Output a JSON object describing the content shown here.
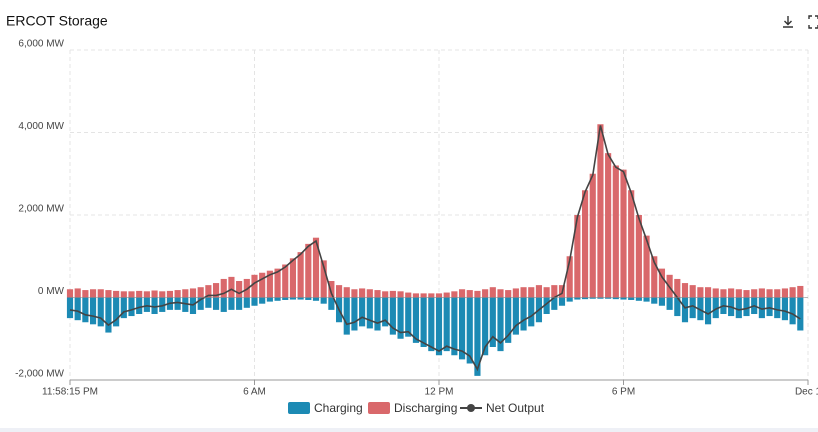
{
  "chart_data": {
    "type": "bar_line",
    "title": "ERCOT Storage",
    "x": [
      0,
      0.25,
      0.5,
      0.75,
      1,
      1.25,
      1.5,
      1.75,
      2,
      2.25,
      2.5,
      2.75,
      3,
      3.25,
      3.5,
      3.75,
      4,
      4.25,
      4.5,
      4.75,
      5,
      5.25,
      5.5,
      5.75,
      6,
      6.25,
      6.5,
      6.75,
      7,
      7.25,
      7.5,
      7.75,
      8,
      8.25,
      8.5,
      8.75,
      9,
      9.25,
      9.5,
      9.75,
      10,
      10.25,
      10.5,
      10.75,
      11,
      11.25,
      11.5,
      11.75,
      12,
      12.25,
      12.5,
      12.75,
      13,
      13.25,
      13.5,
      13.75,
      14,
      14.25,
      14.5,
      14.75,
      15,
      15.25,
      15.5,
      15.75,
      16,
      16.25,
      16.5,
      16.75,
      17,
      17.25,
      17.5,
      17.75,
      18,
      18.25,
      18.5,
      18.75,
      19,
      19.25,
      19.5,
      19.75,
      20,
      20.25,
      20.5,
      20.75,
      21,
      21.25,
      21.5,
      21.75,
      22,
      22.25,
      22.5,
      22.75,
      23,
      23.25,
      23.5,
      23.75
    ],
    "series": [
      {
        "name": "Charging",
        "color": "#1c8ab4",
        "values": [
          -500,
          -550,
          -600,
          -650,
          -700,
          -850,
          -700,
          -500,
          -450,
          -400,
          -350,
          -400,
          -350,
          -300,
          -300,
          -350,
          -400,
          -300,
          -250,
          -300,
          -350,
          -300,
          -300,
          -250,
          -200,
          -150,
          -100,
          -80,
          -60,
          -50,
          -50,
          -60,
          -80,
          -150,
          -300,
          -600,
          -900,
          -800,
          -700,
          -750,
          -800,
          -700,
          -900,
          -1000,
          -950,
          -1100,
          -1200,
          -1300,
          -1400,
          -1300,
          -1400,
          -1500,
          -1600,
          -1900,
          -1400,
          -1200,
          -1300,
          -1100,
          -900,
          -800,
          -700,
          -600,
          -400,
          -300,
          -200,
          -100,
          -50,
          -40,
          -30,
          -30,
          -30,
          -40,
          -50,
          -60,
          -80,
          -100,
          -150,
          -200,
          -300,
          -450,
          -600,
          -500,
          -550,
          -650,
          -500,
          -400,
          -450,
          -500,
          -450,
          -400,
          -500,
          -450,
          -500,
          -550,
          -650,
          -800
        ]
      },
      {
        "name": "Discharging",
        "color": "#d9686b",
        "values": [
          200,
          220,
          180,
          200,
          200,
          180,
          160,
          150,
          150,
          160,
          150,
          170,
          150,
          160,
          180,
          200,
          220,
          250,
          300,
          350,
          450,
          500,
          400,
          450,
          550,
          600,
          650,
          700,
          800,
          950,
          1100,
          1300,
          1450,
          900,
          400,
          300,
          250,
          200,
          220,
          200,
          180,
          150,
          160,
          150,
          120,
          100,
          100,
          100,
          100,
          120,
          150,
          200,
          180,
          160,
          200,
          250,
          200,
          180,
          220,
          250,
          250,
          300,
          250,
          300,
          300,
          1000,
          2000,
          2600,
          3000,
          4200,
          3500,
          3200,
          3100,
          2600,
          2000,
          1500,
          1000,
          700,
          550,
          450,
          350,
          300,
          250,
          250,
          220,
          200,
          220,
          200,
          180,
          200,
          220,
          200,
          200,
          220,
          250,
          280
        ]
      },
      {
        "name": "Net Output",
        "color": "#444444",
        "values": [
          -300,
          -330,
          -420,
          -450,
          -500,
          -670,
          -540,
          -350,
          -300,
          -240,
          -200,
          -230,
          -200,
          -140,
          -120,
          -150,
          -180,
          -50,
          50,
          50,
          100,
          200,
          100,
          200,
          350,
          450,
          550,
          620,
          740,
          900,
          1050,
          1240,
          1370,
          750,
          100,
          -300,
          -650,
          -600,
          -480,
          -550,
          -620,
          -550,
          -740,
          -850,
          -830,
          -1000,
          -1100,
          -1200,
          -1300,
          -1180,
          -1250,
          -1300,
          -1420,
          -1740,
          -1200,
          -950,
          -1100,
          -920,
          -680,
          -550,
          -450,
          -300,
          -150,
          0,
          100,
          900,
          1950,
          2560,
          2970,
          4170,
          3470,
          3160,
          3050,
          2540,
          1920,
          1400,
          850,
          500,
          250,
          0,
          -250,
          -200,
          -300,
          -400,
          -280,
          -200,
          -230,
          -300,
          -270,
          -200,
          -280,
          -250,
          -300,
          -330,
          -400,
          -520
        ]
      }
    ],
    "xlim": [
      0,
      24
    ],
    "xticks": [
      {
        "value": 0,
        "label": "11:58:15 PM"
      },
      {
        "value": 6,
        "label": "6 AM"
      },
      {
        "value": 12,
        "label": "12 PM"
      },
      {
        "value": 18,
        "label": "6 PM"
      },
      {
        "value": 24,
        "label": "Dec 1"
      }
    ],
    "ylim": [
      -2000,
      6000
    ],
    "yticks": [
      {
        "value": -2000,
        "label": "-2,000 MW"
      },
      {
        "value": 0,
        "label": "0 MW"
      },
      {
        "value": 2000,
        "label": "2,000 MW"
      },
      {
        "value": 4000,
        "label": "4,000 MW"
      },
      {
        "value": 6000,
        "label": "6,000 MW"
      }
    ],
    "grid": true
  }
}
